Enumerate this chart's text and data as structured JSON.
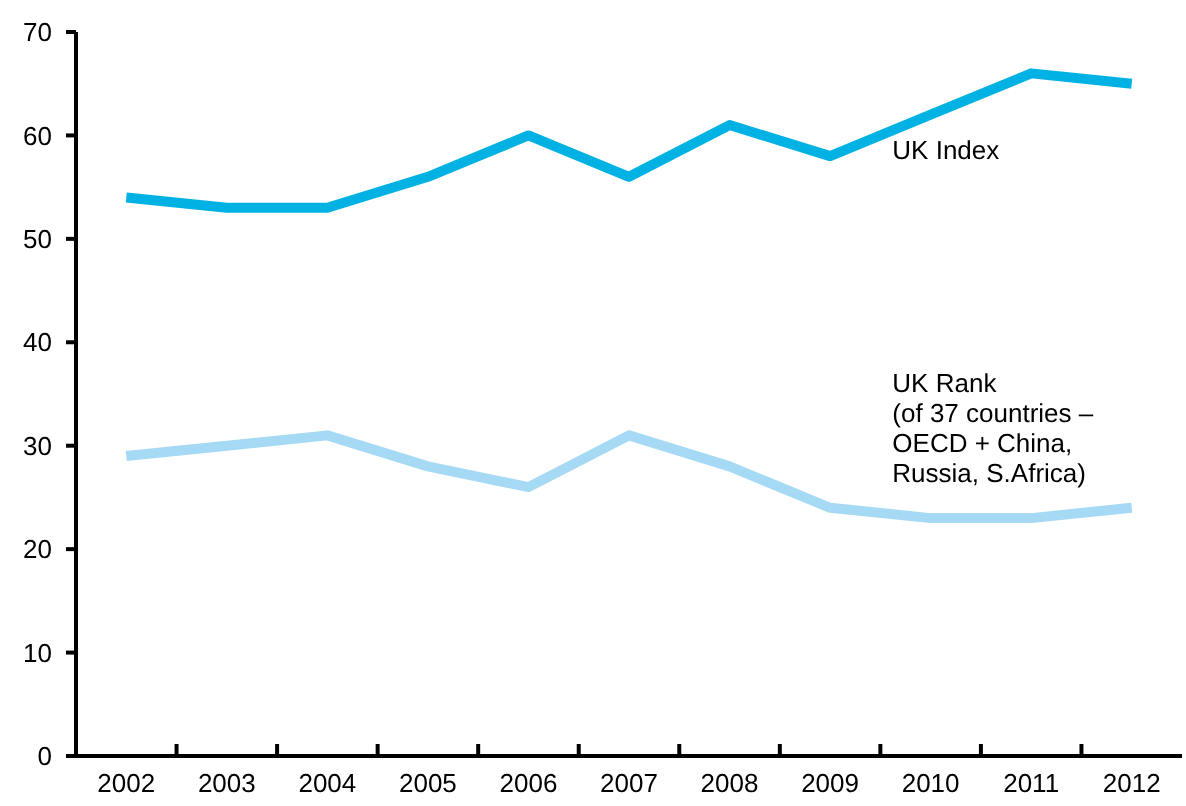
{
  "chart_data": {
    "type": "line",
    "categories": [
      "2002",
      "2003",
      "2004",
      "2005",
      "2006",
      "2007",
      "2008",
      "2009",
      "2010",
      "2011",
      "2012"
    ],
    "series": [
      {
        "name": "UK Index",
        "color": "#00b2e3",
        "values": [
          54,
          53,
          53,
          56,
          60,
          56,
          61,
          58,
          62,
          66,
          65
        ]
      },
      {
        "name": "UK Rank\n(of 37 countries –\nOECD + China,\nRussia, S.Africa)",
        "color": "#a6daf4",
        "values": [
          29,
          30,
          31,
          28,
          26,
          31,
          28,
          24,
          23,
          23,
          24
        ]
      }
    ],
    "ylim": [
      0,
      70
    ],
    "yticks": [
      0,
      10,
      20,
      30,
      40,
      50,
      60,
      70
    ],
    "grid": false,
    "marker": "none",
    "line_style": "solid"
  }
}
